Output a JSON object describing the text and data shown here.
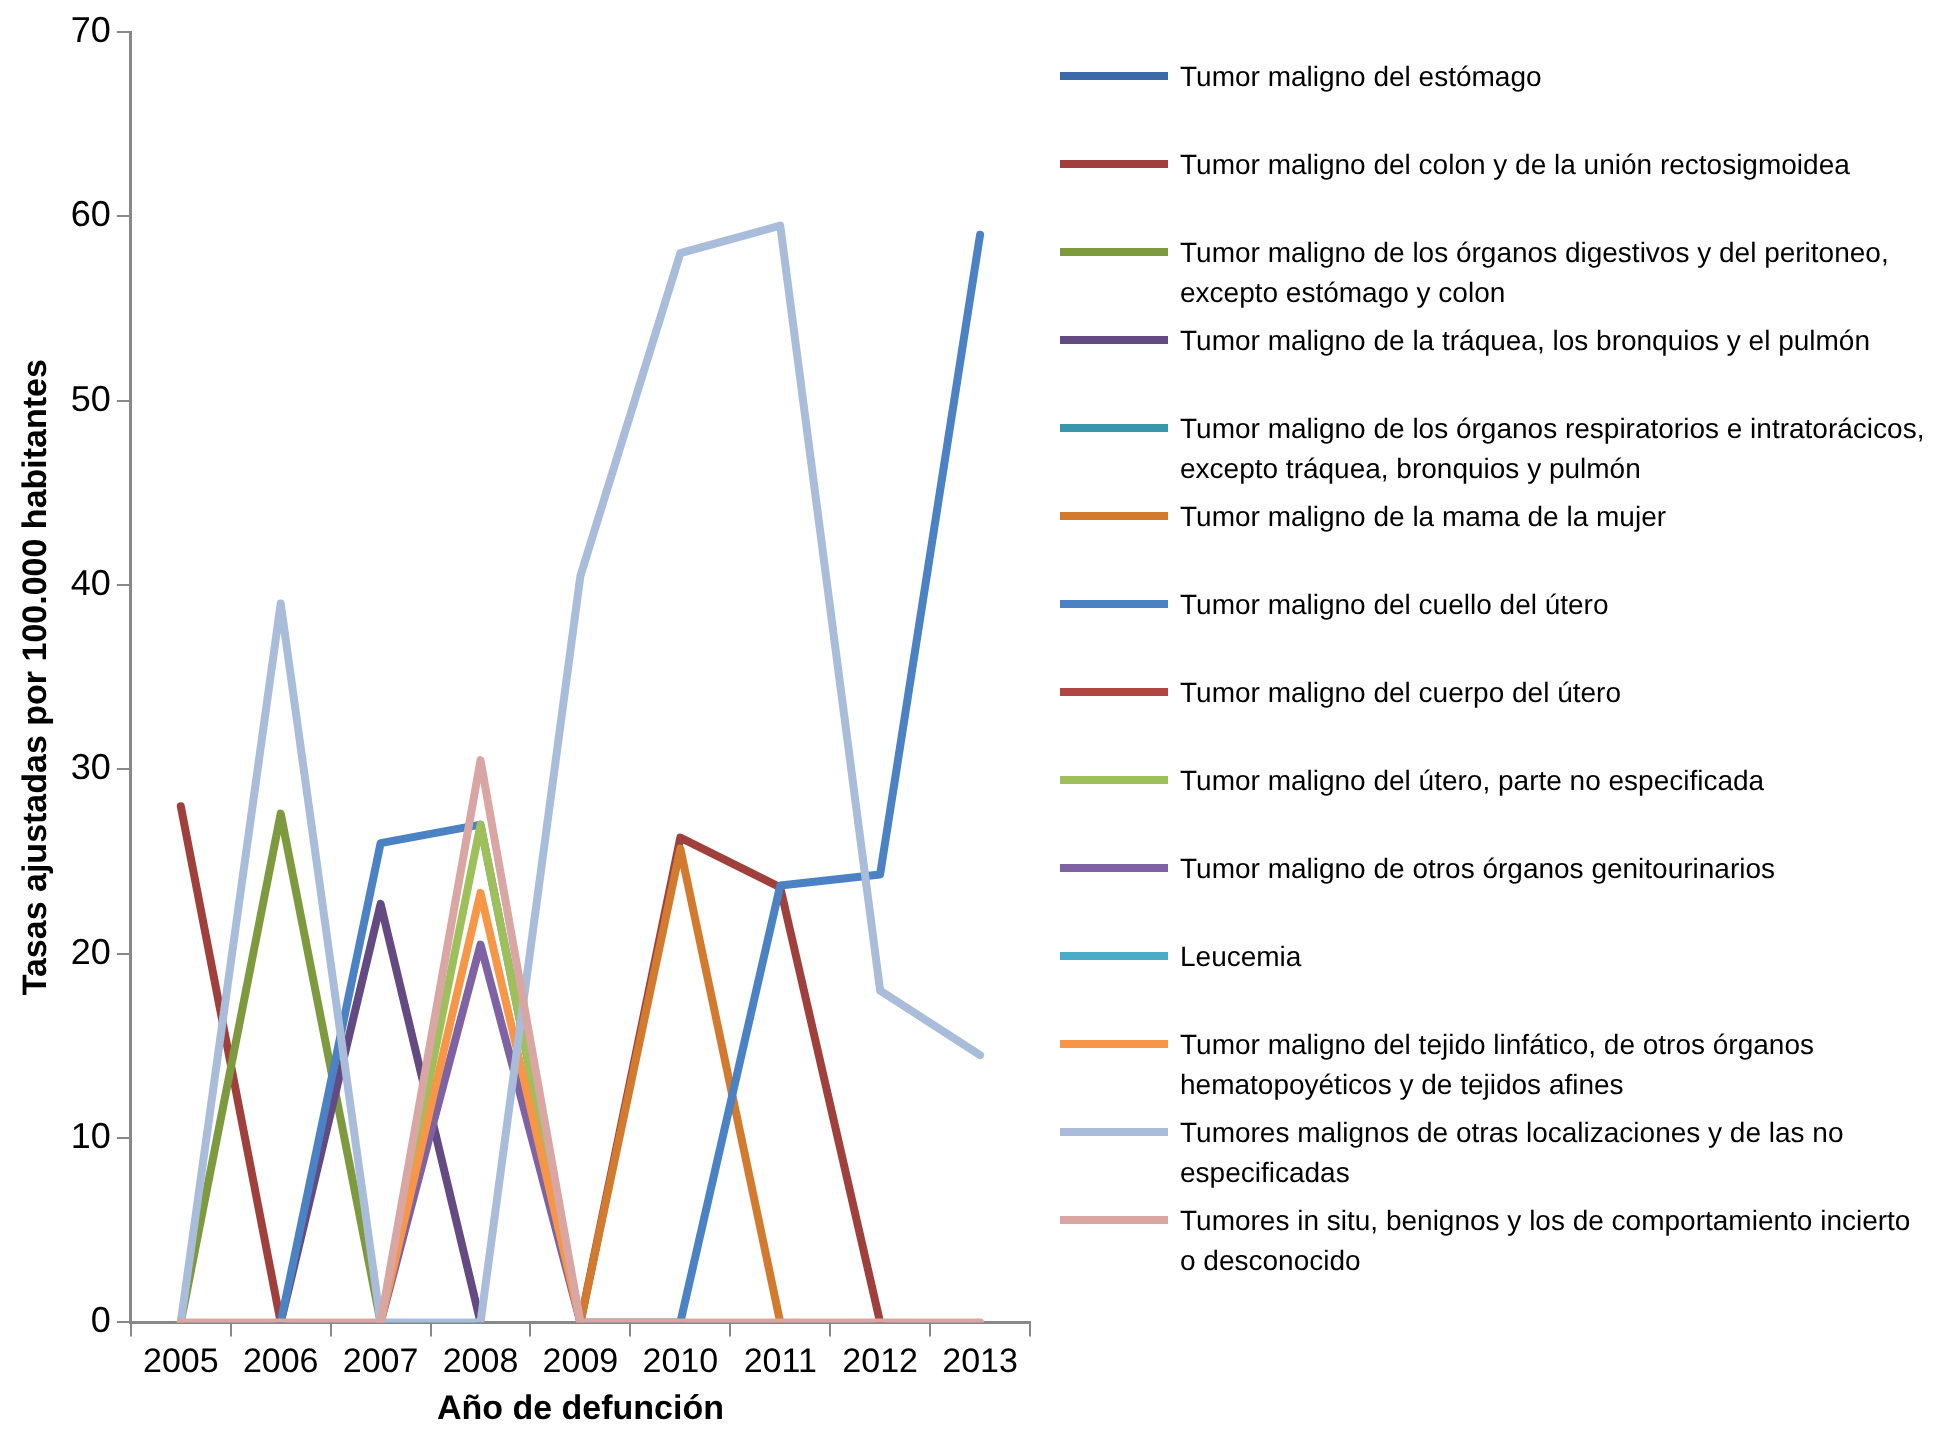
{
  "chart_data": {
    "type": "line",
    "xlabel": "Año de defunción",
    "ylabel": "Tasas ajustadas por 100.000 habitantes",
    "categories": [
      "2005",
      "2006",
      "2007",
      "2008",
      "2009",
      "2010",
      "2011",
      "2012",
      "2013"
    ],
    "ylim": [
      0,
      70
    ],
    "yticks": [
      0,
      10,
      20,
      30,
      40,
      50,
      60,
      70
    ],
    "grid": false,
    "legend": "right",
    "marker": "none",
    "line_style": "solid",
    "series": [
      {
        "name": "Tumor maligno del estómago",
        "color": "#3c6aa8",
        "values": [
          null,
          null,
          null,
          null,
          null,
          null,
          null,
          null,
          null
        ]
      },
      {
        "name": "Tumor maligno del colon y de la unión rectosigmoidea",
        "color": "#a0403c",
        "values": [
          28,
          0,
          null,
          null,
          0,
          26.3,
          23.6,
          0,
          null
        ]
      },
      {
        "name": "Tumor maligno de los órganos digestivos y del peritoneo, excepto estómago y colon",
        "color": "#7e9a3f",
        "values": [
          0,
          27.6,
          0,
          null,
          null,
          null,
          null,
          null,
          null
        ]
      },
      {
        "name": "Tumor maligno de la tráquea, los bronquios y el pulmón",
        "color": "#644a82",
        "values": [
          null,
          0,
          22.7,
          0,
          null,
          null,
          null,
          null,
          null
        ]
      },
      {
        "name": "Tumor maligno de los órganos respiratorios e intratorácicos, excepto tráquea, bronquios y pulmón",
        "color": "#3a97ab",
        "values": [
          null,
          null,
          null,
          null,
          null,
          null,
          null,
          null,
          null
        ]
      },
      {
        "name": "Tumor maligno de la mama de la mujer",
        "color": "#d27a2e",
        "values": [
          null,
          null,
          null,
          null,
          0,
          25.7,
          0,
          null,
          null
        ]
      },
      {
        "name": "Tumor maligno del cuello del útero",
        "color": "#4a82c4",
        "values": [
          null,
          0,
          26,
          27,
          0,
          0,
          23.7,
          24.3,
          59
        ]
      },
      {
        "name": "Tumor maligno del cuerpo del útero",
        "color": "#b14641",
        "values": [
          null,
          null,
          null,
          null,
          null,
          null,
          null,
          null,
          null
        ]
      },
      {
        "name": "Tumor maligno del útero, parte no especificada",
        "color": "#9dc05a",
        "values": [
          null,
          null,
          0,
          27,
          0,
          null,
          null,
          null,
          null
        ]
      },
      {
        "name": "Tumor maligno de otros órganos genitourinarios",
        "color": "#7f62a4",
        "values": [
          null,
          null,
          0,
          20.5,
          0,
          null,
          null,
          null,
          null
        ]
      },
      {
        "name": "Leucemia",
        "color": "#4aacc6",
        "values": [
          null,
          null,
          null,
          null,
          null,
          null,
          null,
          null,
          null
        ]
      },
      {
        "name": "Tumor maligno del tejido linfático, de otros órganos hematopoyéticos y de tejidos afines",
        "color": "#f79646",
        "values": [
          null,
          null,
          0,
          23.3,
          0,
          null,
          null,
          null,
          null
        ]
      },
      {
        "name": "Tumores malignos de otras localizaciones y de las no especificadas",
        "color": "#a9bcda",
        "values": [
          0,
          39,
          0,
          0,
          40.5,
          58,
          59.5,
          18,
          14.5
        ]
      },
      {
        "name": "Tumores in situ, benignos y los de comportamiento incierto o desconocido",
        "color": "#d9a6a4",
        "values": [
          0,
          0,
          0,
          30.5,
          0,
          0,
          0,
          0,
          0
        ]
      }
    ]
  }
}
